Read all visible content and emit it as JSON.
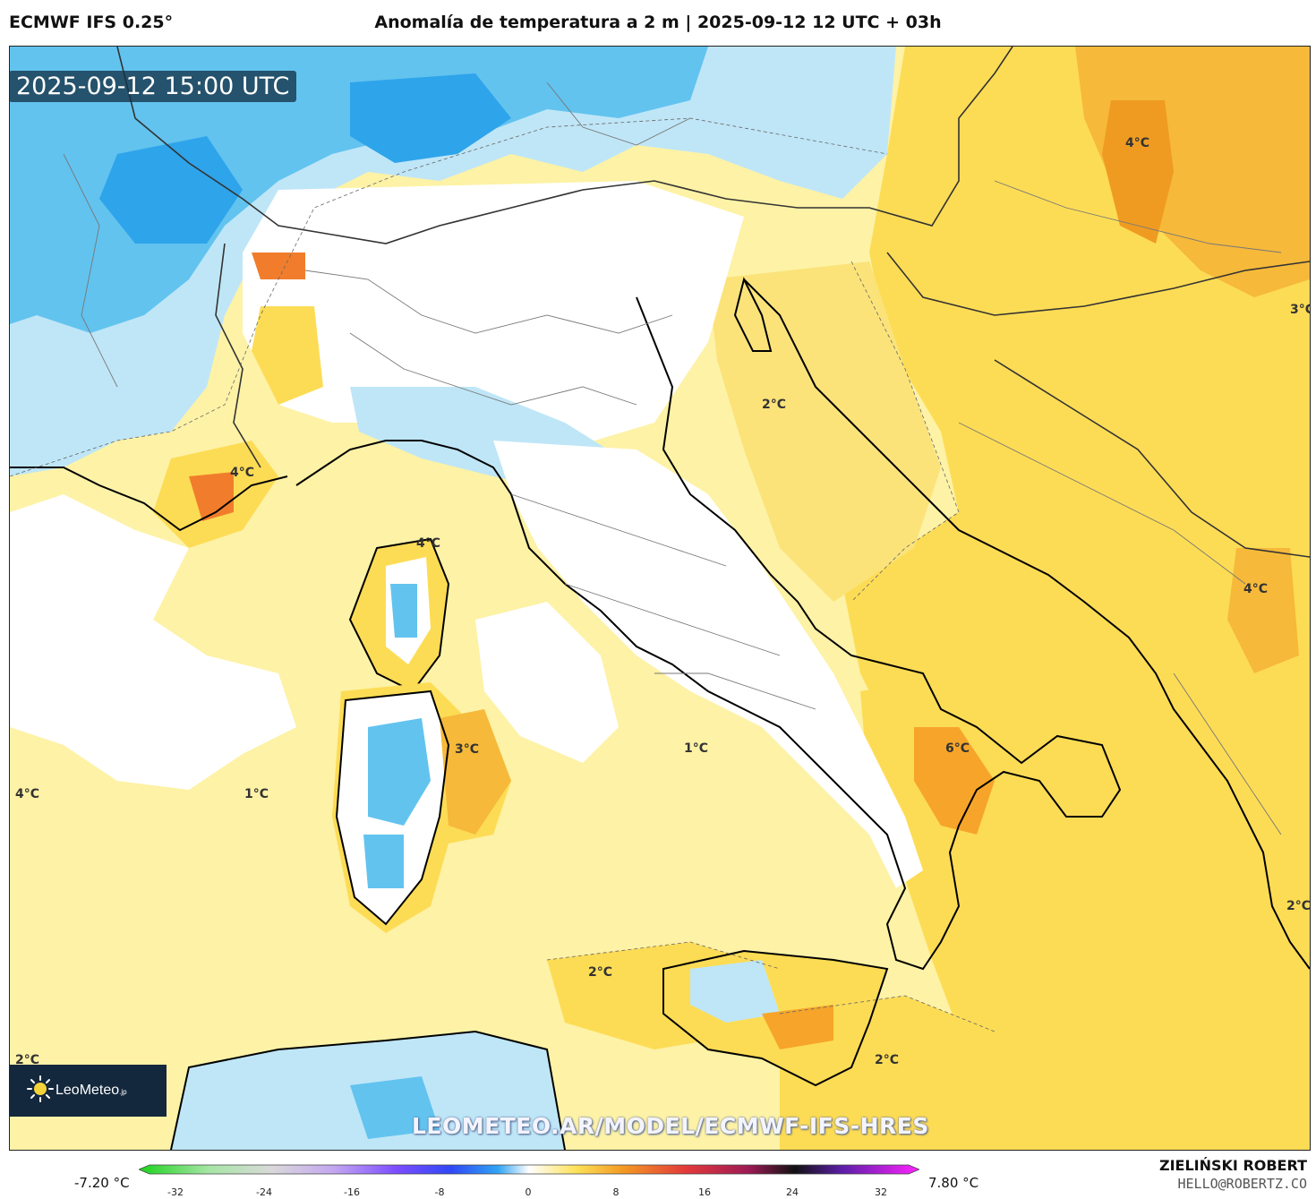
{
  "header": {
    "model": "ECMWF IFS 0.25°",
    "title": "Anomalía de temperatura a 2 m | 2025-09-12 12 UTC + 03h"
  },
  "map": {
    "timestamp": "2025-09-12 15:00 UTC",
    "watermark_url": "LEOMETEO.AR/MODEL/ECMWF-IFS-HRES",
    "logo": {
      "name": "LeoMeteo",
      "suffix": ".jp"
    },
    "labels": [
      "4°C",
      "2°C",
      "3°C",
      "4°C",
      "4°C",
      "4°C",
      "3°C",
      "1°C",
      "6°C",
      "1°C",
      "4°C",
      "2°C",
      "2°C",
      "2°C",
      "2°C"
    ]
  },
  "colorbar": {
    "min_label": "-7.20 °C",
    "max_label": "7.80 °C",
    "ticks": [
      "-32",
      "-24",
      "-16",
      "-8",
      "0",
      "8",
      "16",
      "24",
      "32"
    ]
  },
  "credit": {
    "name": "ZIELIŃSKI ROBERT",
    "email": "HELLO@ROBERTZ.CO"
  },
  "colors": {
    "sea_anomaly": "#fdf2a6",
    "warm_anomaly": "#fddc55",
    "hot_anomaly": "#f6a52a",
    "cold_light": "#bfe6f7",
    "cold_mid": "#62c3ef",
    "cold_strong": "#2ea4ea",
    "coast": "#000000",
    "border": "#555555"
  },
  "icons": [
    "sun-logo-icon"
  ]
}
